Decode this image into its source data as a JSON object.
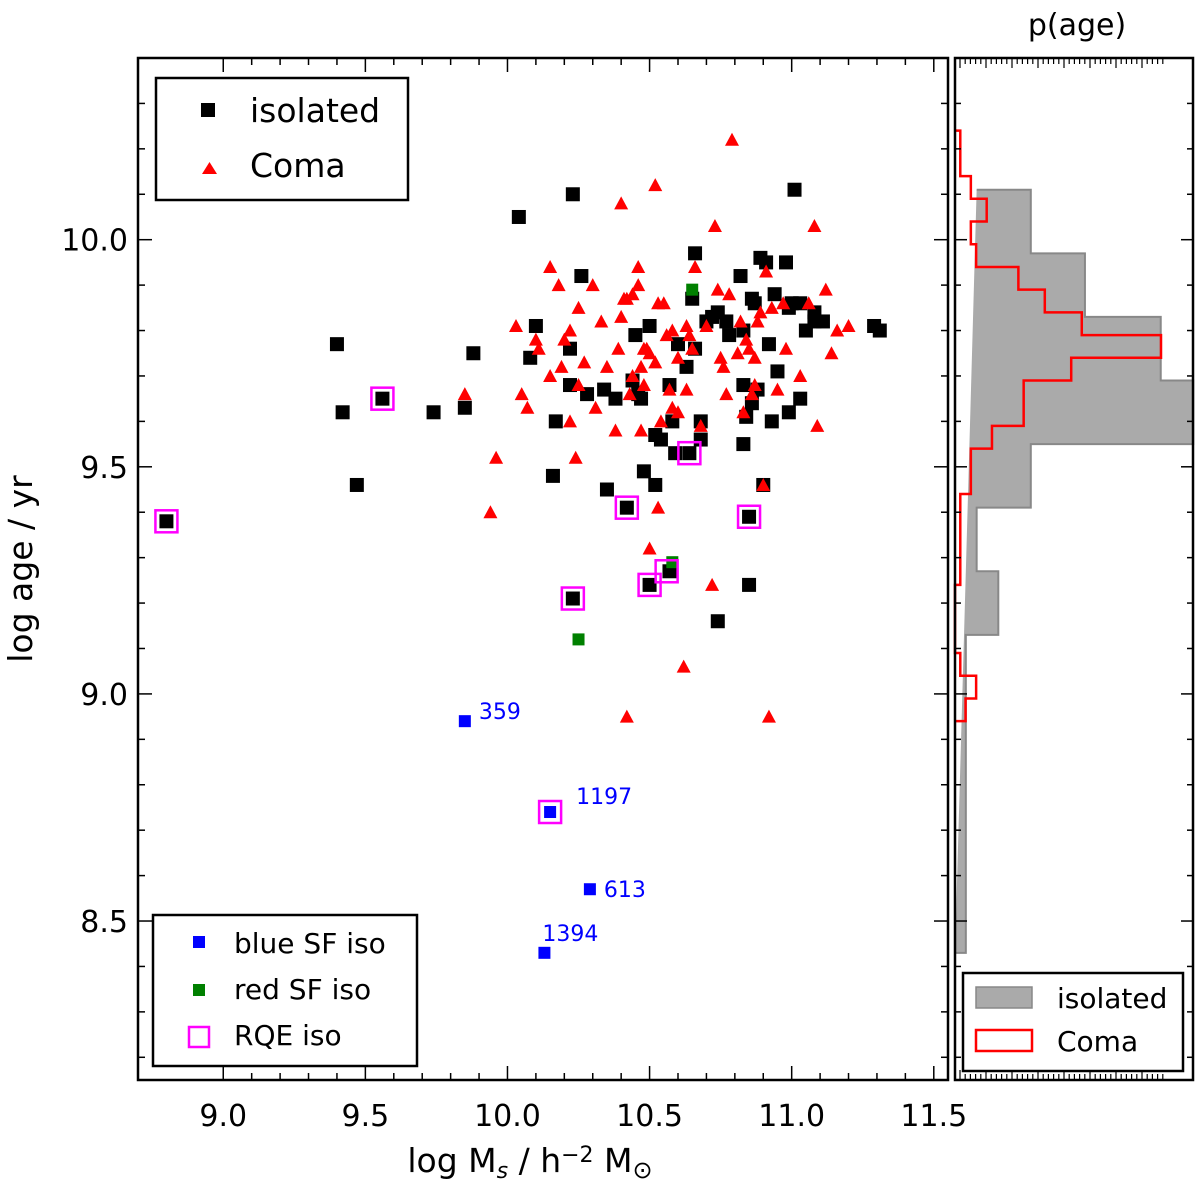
{
  "chart_data": [
    {
      "type": "scatter",
      "xlabel_parts": {
        "pre": "log M",
        "sub": "s",
        "mid": " / h",
        "sup": "−2",
        "post": " M",
        "odot": "⊙"
      },
      "ylabel": "log age / yr",
      "xlim": [
        8.7,
        11.55
      ],
      "ylim": [
        8.15,
        10.4
      ],
      "xticks": [
        9.0,
        9.5,
        10.0,
        10.5,
        11.0,
        11.5
      ],
      "xtick_labels": [
        "9.0",
        "9.5",
        "10.0",
        "10.5",
        "11.0",
        "11.5"
      ],
      "yticks": [
        8.5,
        9.0,
        9.5,
        10.0
      ],
      "ytick_labels": [
        "8.5",
        "9.0",
        "9.5",
        "10.0"
      ],
      "colors": {
        "isolated": "#000000",
        "coma": "#ff0000",
        "blue_sf": "#0000ff",
        "red_sf": "#008000",
        "rqe": "#ff00ff"
      },
      "legend_top": [
        {
          "label": "isolated",
          "marker": "square",
          "color": "#000000"
        },
        {
          "label": "Coma",
          "marker": "triangle",
          "color": "#ff0000"
        }
      ],
      "legend_bottom": [
        {
          "label": "blue SF iso",
          "marker": "square",
          "color": "#0000ff"
        },
        {
          "label": "red SF iso",
          "marker": "square",
          "color": "#008000"
        },
        {
          "label": "RQE iso",
          "marker": "open-square",
          "color": "#ff00ff"
        }
      ],
      "series": [
        {
          "name": "isolated",
          "marker": "square",
          "points": [
            [
              8.8,
              9.38
            ],
            [
              9.4,
              9.77
            ],
            [
              9.42,
              9.62
            ],
            [
              9.47,
              9.46
            ],
            [
              9.56,
              9.65
            ],
            [
              9.74,
              9.62
            ],
            [
              9.85,
              9.63
            ],
            [
              9.88,
              9.75
            ],
            [
              10.04,
              10.05
            ],
            [
              10.08,
              9.74
            ],
            [
              10.1,
              9.81
            ],
            [
              10.16,
              9.48
            ],
            [
              10.17,
              9.6
            ],
            [
              10.22,
              9.76
            ],
            [
              10.22,
              9.68
            ],
            [
              10.23,
              10.1
            ],
            [
              10.23,
              9.21
            ],
            [
              10.26,
              9.92
            ],
            [
              10.28,
              9.66
            ],
            [
              10.34,
              9.67
            ],
            [
              10.35,
              9.45
            ],
            [
              10.38,
              9.65
            ],
            [
              10.42,
              9.41
            ],
            [
              10.44,
              9.69
            ],
            [
              10.45,
              9.79
            ],
            [
              10.46,
              9.66
            ],
            [
              10.47,
              9.65
            ],
            [
              10.48,
              9.49
            ],
            [
              10.5,
              9.24
            ],
            [
              10.5,
              9.81
            ],
            [
              10.52,
              9.46
            ],
            [
              10.52,
              9.57
            ],
            [
              10.54,
              9.56
            ],
            [
              10.57,
              9.27
            ],
            [
              10.57,
              9.68
            ],
            [
              10.58,
              9.6
            ],
            [
              10.59,
              9.53
            ],
            [
              10.6,
              9.77
            ],
            [
              10.63,
              9.72
            ],
            [
              10.64,
              9.53
            ],
            [
              10.65,
              9.87
            ],
            [
              10.66,
              9.97
            ],
            [
              10.66,
              9.76
            ],
            [
              10.68,
              9.56
            ],
            [
              10.68,
              9.6
            ],
            [
              10.7,
              9.82
            ],
            [
              10.72,
              9.83
            ],
            [
              10.74,
              9.16
            ],
            [
              10.74,
              9.84
            ],
            [
              10.77,
              9.82
            ],
            [
              10.78,
              9.79
            ],
            [
              10.82,
              9.92
            ],
            [
              10.83,
              9.8
            ],
            [
              10.83,
              9.55
            ],
            [
              10.83,
              9.68
            ],
            [
              10.84,
              9.61
            ],
            [
              10.85,
              9.39
            ],
            [
              10.85,
              9.24
            ],
            [
              10.86,
              9.64
            ],
            [
              10.86,
              9.87
            ],
            [
              10.87,
              9.86
            ],
            [
              10.88,
              9.67
            ],
            [
              10.89,
              9.96
            ],
            [
              10.9,
              9.46
            ],
            [
              10.91,
              9.95
            ],
            [
              10.92,
              9.77
            ],
            [
              10.93,
              9.6
            ],
            [
              10.94,
              9.88
            ],
            [
              10.95,
              9.71
            ],
            [
              10.98,
              9.95
            ],
            [
              10.99,
              9.62
            ],
            [
              10.99,
              9.85
            ],
            [
              11.0,
              9.86
            ],
            [
              11.01,
              10.11
            ],
            [
              11.03,
              9.65
            ],
            [
              11.03,
              9.86
            ],
            [
              11.05,
              9.8
            ],
            [
              11.08,
              9.82
            ],
            [
              11.08,
              9.84
            ],
            [
              11.11,
              9.82
            ],
            [
              11.29,
              9.81
            ],
            [
              11.31,
              9.8
            ]
          ]
        },
        {
          "name": "Coma",
          "marker": "triangle",
          "points": [
            [
              9.85,
              9.66
            ],
            [
              9.94,
              9.4
            ],
            [
              9.96,
              9.52
            ],
            [
              10.03,
              9.81
            ],
            [
              10.05,
              9.66
            ],
            [
              10.07,
              9.63
            ],
            [
              10.1,
              9.78
            ],
            [
              10.11,
              9.76
            ],
            [
              10.15,
              9.7
            ],
            [
              10.15,
              9.94
            ],
            [
              10.18,
              9.9
            ],
            [
              10.19,
              9.72
            ],
            [
              10.2,
              9.78
            ],
            [
              10.22,
              9.8
            ],
            [
              10.22,
              9.6
            ],
            [
              10.24,
              9.52
            ],
            [
              10.25,
              9.85
            ],
            [
              10.25,
              9.68
            ],
            [
              10.27,
              9.73
            ],
            [
              10.3,
              9.9
            ],
            [
              10.31,
              9.63
            ],
            [
              10.33,
              9.82
            ],
            [
              10.35,
              9.72
            ],
            [
              10.38,
              9.58
            ],
            [
              10.39,
              9.76
            ],
            [
              10.4,
              10.08
            ],
            [
              10.4,
              9.83
            ],
            [
              10.41,
              9.87
            ],
            [
              10.42,
              9.87
            ],
            [
              10.42,
              8.95
            ],
            [
              10.43,
              9.66
            ],
            [
              10.44,
              9.7
            ],
            [
              10.44,
              9.88
            ],
            [
              10.46,
              9.94
            ],
            [
              10.46,
              9.9
            ],
            [
              10.47,
              9.72
            ],
            [
              10.47,
              9.58
            ],
            [
              10.48,
              9.68
            ],
            [
              10.48,
              9.76
            ],
            [
              10.49,
              9.76
            ],
            [
              10.5,
              9.32
            ],
            [
              10.5,
              9.75
            ],
            [
              10.52,
              9.73
            ],
            [
              10.52,
              10.12
            ],
            [
              10.53,
              9.86
            ],
            [
              10.53,
              9.41
            ],
            [
              10.54,
              9.6
            ],
            [
              10.55,
              9.86
            ],
            [
              10.56,
              9.79
            ],
            [
              10.57,
              9.67
            ],
            [
              10.58,
              9.8
            ],
            [
              10.58,
              9.63
            ],
            [
              10.6,
              9.62
            ],
            [
              10.6,
              9.74
            ],
            [
              10.62,
              9.06
            ],
            [
              10.63,
              9.67
            ],
            [
              10.63,
              9.81
            ],
            [
              10.64,
              9.79
            ],
            [
              10.65,
              9.76
            ],
            [
              10.66,
              9.94
            ],
            [
              10.68,
              9.59
            ],
            [
              10.7,
              9.81
            ],
            [
              10.72,
              9.24
            ],
            [
              10.73,
              10.03
            ],
            [
              10.74,
              9.89
            ],
            [
              10.75,
              9.74
            ],
            [
              10.76,
              9.72
            ],
            [
              10.77,
              9.66
            ],
            [
              10.78,
              9.88
            ],
            [
              10.79,
              10.22
            ],
            [
              10.81,
              9.75
            ],
            [
              10.82,
              9.82
            ],
            [
              10.83,
              9.62
            ],
            [
              10.84,
              9.78
            ],
            [
              10.85,
              9.76
            ],
            [
              10.86,
              9.66
            ],
            [
              10.87,
              9.68
            ],
            [
              10.87,
              9.74
            ],
            [
              10.88,
              9.82
            ],
            [
              10.89,
              9.84
            ],
            [
              10.9,
              9.46
            ],
            [
              10.91,
              9.93
            ],
            [
              10.92,
              8.95
            ],
            [
              10.93,
              9.85
            ],
            [
              10.95,
              9.67
            ],
            [
              10.97,
              9.86
            ],
            [
              10.98,
              9.76
            ],
            [
              11.03,
              9.7
            ],
            [
              11.06,
              9.86
            ],
            [
              11.08,
              10.03
            ],
            [
              11.09,
              9.59
            ],
            [
              11.12,
              9.89
            ],
            [
              11.14,
              9.75
            ],
            [
              11.16,
              9.8
            ],
            [
              11.2,
              9.81
            ]
          ]
        },
        {
          "name": "blue SF iso",
          "marker": "square",
          "points": [
            [
              9.85,
              8.94
            ],
            [
              10.15,
              8.74
            ],
            [
              10.29,
              8.57
            ],
            [
              10.13,
              8.43
            ]
          ],
          "labels": [
            "359",
            "1197",
            "613",
            "1394"
          ]
        },
        {
          "name": "red SF iso",
          "marker": "square",
          "points": [
            [
              10.25,
              9.12
            ],
            [
              10.58,
              9.29
            ],
            [
              10.65,
              9.89
            ]
          ]
        },
        {
          "name": "RQE iso",
          "marker": "open-square",
          "points": [
            [
              8.8,
              9.38
            ],
            [
              9.56,
              9.65
            ],
            [
              10.15,
              8.74
            ],
            [
              10.23,
              9.21
            ],
            [
              10.42,
              9.41
            ],
            [
              10.5,
              9.24
            ],
            [
              10.56,
              9.27
            ],
            [
              10.64,
              9.53
            ],
            [
              10.85,
              9.39
            ]
          ]
        }
      ]
    },
    {
      "type": "histogram",
      "title": "p(age)",
      "orientation": "horizontal",
      "ylim": [
        8.15,
        10.4
      ],
      "legend": [
        {
          "label": "isolated",
          "style": "filled",
          "color": "#aaaaaa"
        },
        {
          "label": "Coma",
          "style": "step",
          "color": "#ff0000"
        }
      ],
      "series": [
        {
          "name": "isolated",
          "color": "#aaaaaa",
          "bin_edges": [
            8.43,
            8.57,
            8.71,
            8.85,
            8.99,
            9.13,
            9.27,
            9.41,
            9.55,
            9.69,
            9.83,
            9.97,
            10.11
          ],
          "counts": [
            1,
            1,
            1,
            1,
            1,
            4,
            2,
            7,
            22,
            19,
            12,
            7,
            2
          ]
        },
        {
          "name": "Coma",
          "color": "#ff0000",
          "bin_edges": [
            8.94,
            8.99,
            9.04,
            9.09,
            9.14,
            9.19,
            9.24,
            9.29,
            9.34,
            9.39,
            9.44,
            9.49,
            9.54,
            9.59,
            9.64,
            9.69,
            9.74,
            9.79,
            9.84,
            9.89,
            9.94,
            9.99,
            10.04,
            10.09,
            10.14,
            10.19,
            10.24
          ],
          "counts": [
            2,
            4,
            1,
            0,
            0,
            0,
            1,
            1,
            1,
            1,
            3,
            3,
            7,
            13,
            13,
            22,
            39,
            24,
            17,
            12,
            4,
            3,
            6,
            3,
            1,
            1
          ]
        }
      ]
    }
  ]
}
